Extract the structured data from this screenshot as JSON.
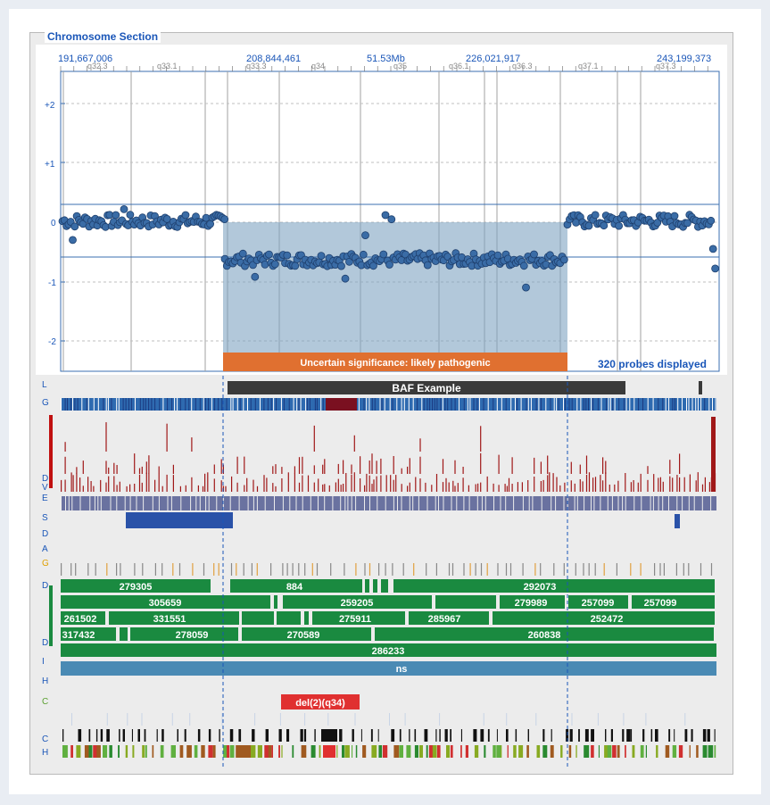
{
  "panel": {
    "title": "Chromosome Section"
  },
  "ruler": {
    "coordinates": [
      "191,667,006",
      "208,844,461",
      "51.53Mb",
      "226,021,917",
      "243,199,373"
    ],
    "bands": [
      "q32.3",
      "q33.1",
      "q33.3",
      "q34",
      "q35",
      "q36.1",
      "q36.3",
      "q37.1",
      "q37.3"
    ]
  },
  "plot": {
    "y_ticks": [
      "+2",
      "+1",
      "0",
      "-1",
      "-2"
    ],
    "probes_label": "320 probes displayed",
    "classification": "Uncertain significance: likely pathogenic",
    "colors": {
      "point": "#3a6ca6",
      "region": "#7fa3c2",
      "classification": "#e07030",
      "accent": "#1a56b8"
    }
  },
  "tracks": {
    "labels": [
      "L",
      "G",
      "D",
      "V",
      "E",
      "S",
      "D",
      "A",
      "G",
      "D",
      "D",
      "I",
      "H",
      "C",
      "C",
      "H"
    ],
    "baf_label": "BAF Example",
    "green_rows": [
      [
        "279305",
        "884",
        "292073"
      ],
      [
        "305659",
        "259205",
        "279989",
        "257099",
        "257099"
      ],
      [
        "261502",
        "331551",
        "275911",
        "285967",
        "252472"
      ],
      [
        "317432",
        "278059",
        "270589",
        "260838"
      ],
      [
        "286233"
      ]
    ],
    "ns_label": "ns",
    "del_label": "del(2)(q34)",
    "colors": {
      "green": "#1a8a40",
      "blue_bar": "#4a8ab4",
      "del": "#e03030",
      "dark_red": "#a01818",
      "grey_blue": "#6a72a0"
    }
  }
}
